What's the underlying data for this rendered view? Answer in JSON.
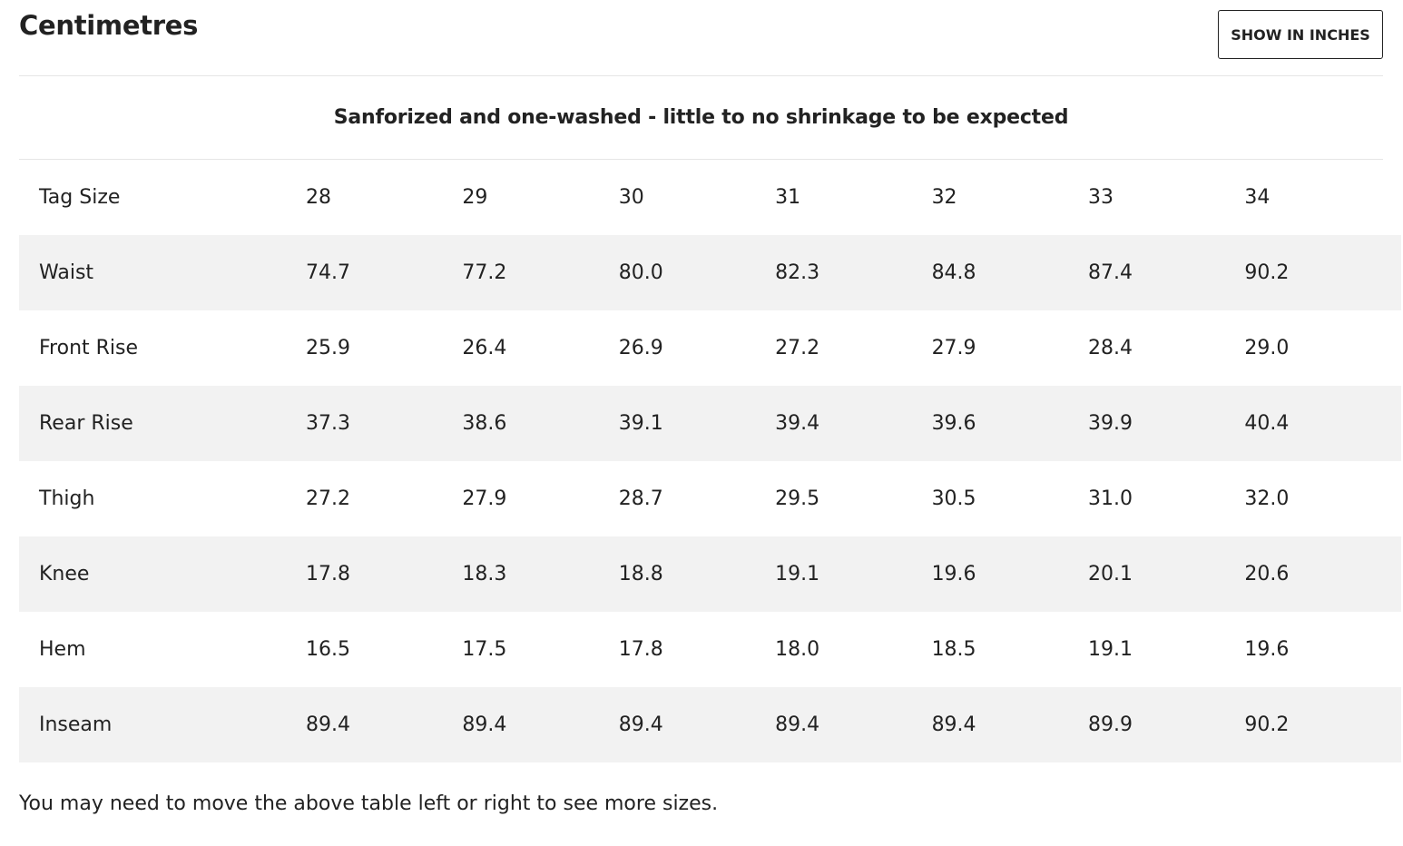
{
  "header": {
    "title": "Centimetres",
    "toggle_label": "SHOW IN INCHES"
  },
  "note": "Sanforized and one-washed - little to no shrinkage to be expected",
  "table": {
    "header_label": "Tag Size",
    "sizes": [
      "28",
      "29",
      "30",
      "31",
      "32",
      "33",
      "34"
    ],
    "rows": [
      {
        "label": "Waist",
        "values": [
          "74.7",
          "77.2",
          "80.0",
          "82.3",
          "84.8",
          "87.4",
          "90.2"
        ]
      },
      {
        "label": "Front Rise",
        "values": [
          "25.9",
          "26.4",
          "26.9",
          "27.2",
          "27.9",
          "28.4",
          "29.0"
        ]
      },
      {
        "label": "Rear Rise",
        "values": [
          "37.3",
          "38.6",
          "39.1",
          "39.4",
          "39.6",
          "39.9",
          "40.4"
        ]
      },
      {
        "label": "Thigh",
        "values": [
          "27.2",
          "27.9",
          "28.7",
          "29.5",
          "30.5",
          "31.0",
          "32.0"
        ]
      },
      {
        "label": "Knee",
        "values": [
          "17.8",
          "18.3",
          "18.8",
          "19.1",
          "19.6",
          "20.1",
          "20.6"
        ]
      },
      {
        "label": "Hem",
        "values": [
          "16.5",
          "17.5",
          "17.8",
          "18.0",
          "18.5",
          "19.1",
          "19.6"
        ]
      },
      {
        "label": "Inseam",
        "values": [
          "89.4",
          "89.4",
          "89.4",
          "89.4",
          "89.4",
          "89.9",
          "90.2"
        ]
      }
    ]
  },
  "footnote": "You may need to move the above table left or right to see more sizes.",
  "colors": {
    "text": "#222222",
    "row_shade": "#f2f2f2",
    "divider": "#e6e6e6",
    "button_border": "#222222"
  }
}
